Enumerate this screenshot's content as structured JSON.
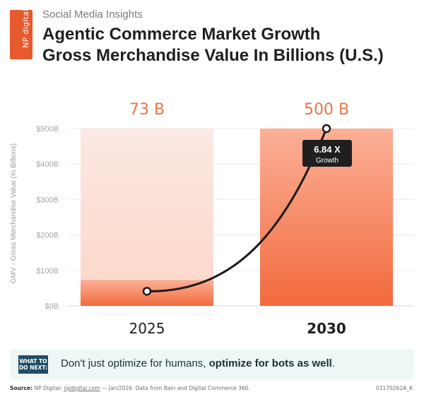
{
  "brand": {
    "logo_text": "NP digital",
    "accent": "#e65a2d"
  },
  "header": {
    "kicker": "Social Media Insights",
    "title_line1": "Agentic Commerce Market Growth",
    "title_line2": "Gross Merchandise Value In Billions (U.S.)"
  },
  "chart_data": {
    "type": "bar",
    "categories": [
      "2025",
      "2030"
    ],
    "values": [
      73,
      500
    ],
    "value_labels": [
      "73 B",
      "500 B"
    ],
    "ylabel": "GMV - Gross Merchandise Value (In Billions)",
    "ylim": [
      0,
      500
    ],
    "yticks": [
      "$0B",
      "$100B",
      "$200B",
      "$300B",
      "$400B",
      "$500B"
    ],
    "grid": true,
    "annotation": {
      "value": "6.84 X",
      "text": "Growth"
    },
    "colors": {
      "bar_light": "#fde2d9",
      "bar_fill": "#f7764d",
      "value_label": "#ef7346",
      "line": "#1a1a1a"
    }
  },
  "footer": {
    "badge": "WHAT TO DO NEXT:",
    "tip_prefix": "Don't just optimize for humans, ",
    "tip_bold": "optimize for bots as well",
    "tip_suffix": "."
  },
  "source": {
    "label": "Source:",
    "org": "NP Digital:",
    "link": "npdigital.com",
    "date": " — Jan/2026.",
    "rest": " Data from Bain and Digital Commerce 360.",
    "code": "01170262A_K"
  }
}
